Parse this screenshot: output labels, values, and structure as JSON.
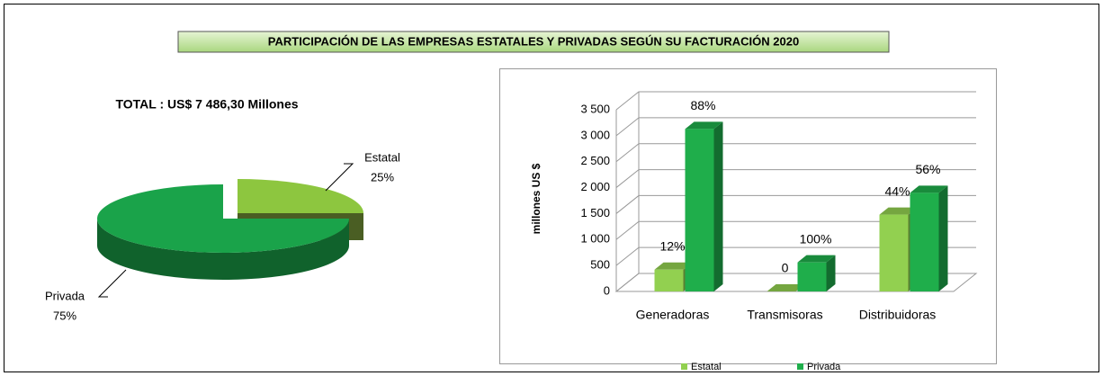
{
  "title": "PARTICIPACIÓN DE LAS EMPRESAS ESTATALES Y PRIVADAS SEGÚN SU FACTURACIÓN 2020",
  "chart_data": [
    {
      "type": "pie",
      "title": "TOTAL : US$  7 486,30 Millones",
      "categories": [
        "Estatal",
        "Privada"
      ],
      "values": [
        25,
        75
      ],
      "value_labels": [
        "25%",
        "75%"
      ],
      "colors": [
        "#8dc63f",
        "#1aa34a"
      ]
    },
    {
      "type": "bar",
      "ylabel": "millones US $",
      "categories": [
        "Generadoras",
        "Transmisoras",
        "Distribuidoras"
      ],
      "series": [
        {
          "name": "Estatal",
          "color": "#92d050",
          "values": [
            420,
            0,
            1480
          ],
          "percent_labels": [
            "12%",
            "0",
            "44%"
          ]
        },
        {
          "name": "Privada",
          "color": "#1fae4b",
          "values": [
            3130,
            560,
            1900
          ],
          "percent_labels": [
            "88%",
            "100%",
            "56%"
          ]
        }
      ],
      "ylim": [
        0,
        3500
      ],
      "yticks": [
        0,
        500,
        {
          "value": 1000,
          "label": "1 000"
        },
        {
          "value": 1500,
          "label": "1 500"
        },
        {
          "value": 2000,
          "label": "2 000"
        },
        {
          "value": 2500,
          "label": "2 500"
        },
        {
          "value": 3000,
          "label": "3 000"
        },
        {
          "value": 3500,
          "label": "3 500"
        }
      ],
      "grid": true,
      "legend": "bottom"
    }
  ]
}
